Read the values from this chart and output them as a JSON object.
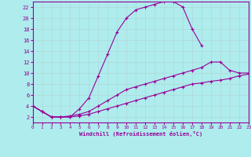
{
  "xlabel": "Windchill (Refroidissement éolien,°C)",
  "background_color": "#aeeced",
  "grid_color": "#c0e8e8",
  "line_color": "#990099",
  "xlim": [
    0,
    23
  ],
  "ylim": [
    1,
    23
  ],
  "xticks": [
    0,
    1,
    2,
    3,
    4,
    5,
    6,
    7,
    8,
    9,
    10,
    11,
    12,
    13,
    14,
    15,
    16,
    17,
    18,
    19,
    20,
    21,
    22,
    23
  ],
  "yticks": [
    2,
    4,
    6,
    8,
    10,
    12,
    14,
    16,
    18,
    20,
    22
  ],
  "series": [
    {
      "x": [
        0,
        1,
        2,
        3,
        4,
        5,
        6,
        7,
        8,
        9,
        10,
        11,
        12,
        13,
        14,
        15,
        16,
        17,
        18
      ],
      "y": [
        4,
        3,
        2,
        2,
        2,
        3.5,
        5.5,
        9.5,
        13.5,
        17.5,
        20.0,
        21.5,
        22.0,
        22.5,
        23.0,
        23.0,
        22.0,
        18.0,
        15.0
      ]
    },
    {
      "x": [
        0,
        1,
        2,
        3,
        4,
        5,
        6,
        7,
        8,
        9,
        10,
        11,
        12,
        13,
        14,
        15,
        16,
        17,
        18,
        19,
        20,
        21,
        22,
        23
      ],
      "y": [
        4.0,
        3.0,
        2.0,
        2.0,
        2.2,
        2.5,
        3.0,
        4.0,
        5.0,
        6.0,
        7.0,
        7.5,
        8.0,
        8.5,
        9.0,
        9.5,
        10.0,
        10.5,
        11.0,
        12.0,
        12.0,
        10.5,
        10.0,
        10.0
      ]
    },
    {
      "x": [
        0,
        1,
        2,
        3,
        4,
        5,
        6,
        7,
        8,
        9,
        10,
        11,
        12,
        13,
        14,
        15,
        16,
        17,
        18,
        19,
        20,
        21,
        22,
        23
      ],
      "y": [
        4.0,
        3.0,
        2.0,
        2.0,
        2.0,
        2.2,
        2.5,
        3.0,
        3.5,
        4.0,
        4.5,
        5.0,
        5.5,
        6.0,
        6.5,
        7.0,
        7.5,
        8.0,
        8.2,
        8.5,
        8.7,
        9.0,
        9.5,
        9.8
      ]
    }
  ]
}
